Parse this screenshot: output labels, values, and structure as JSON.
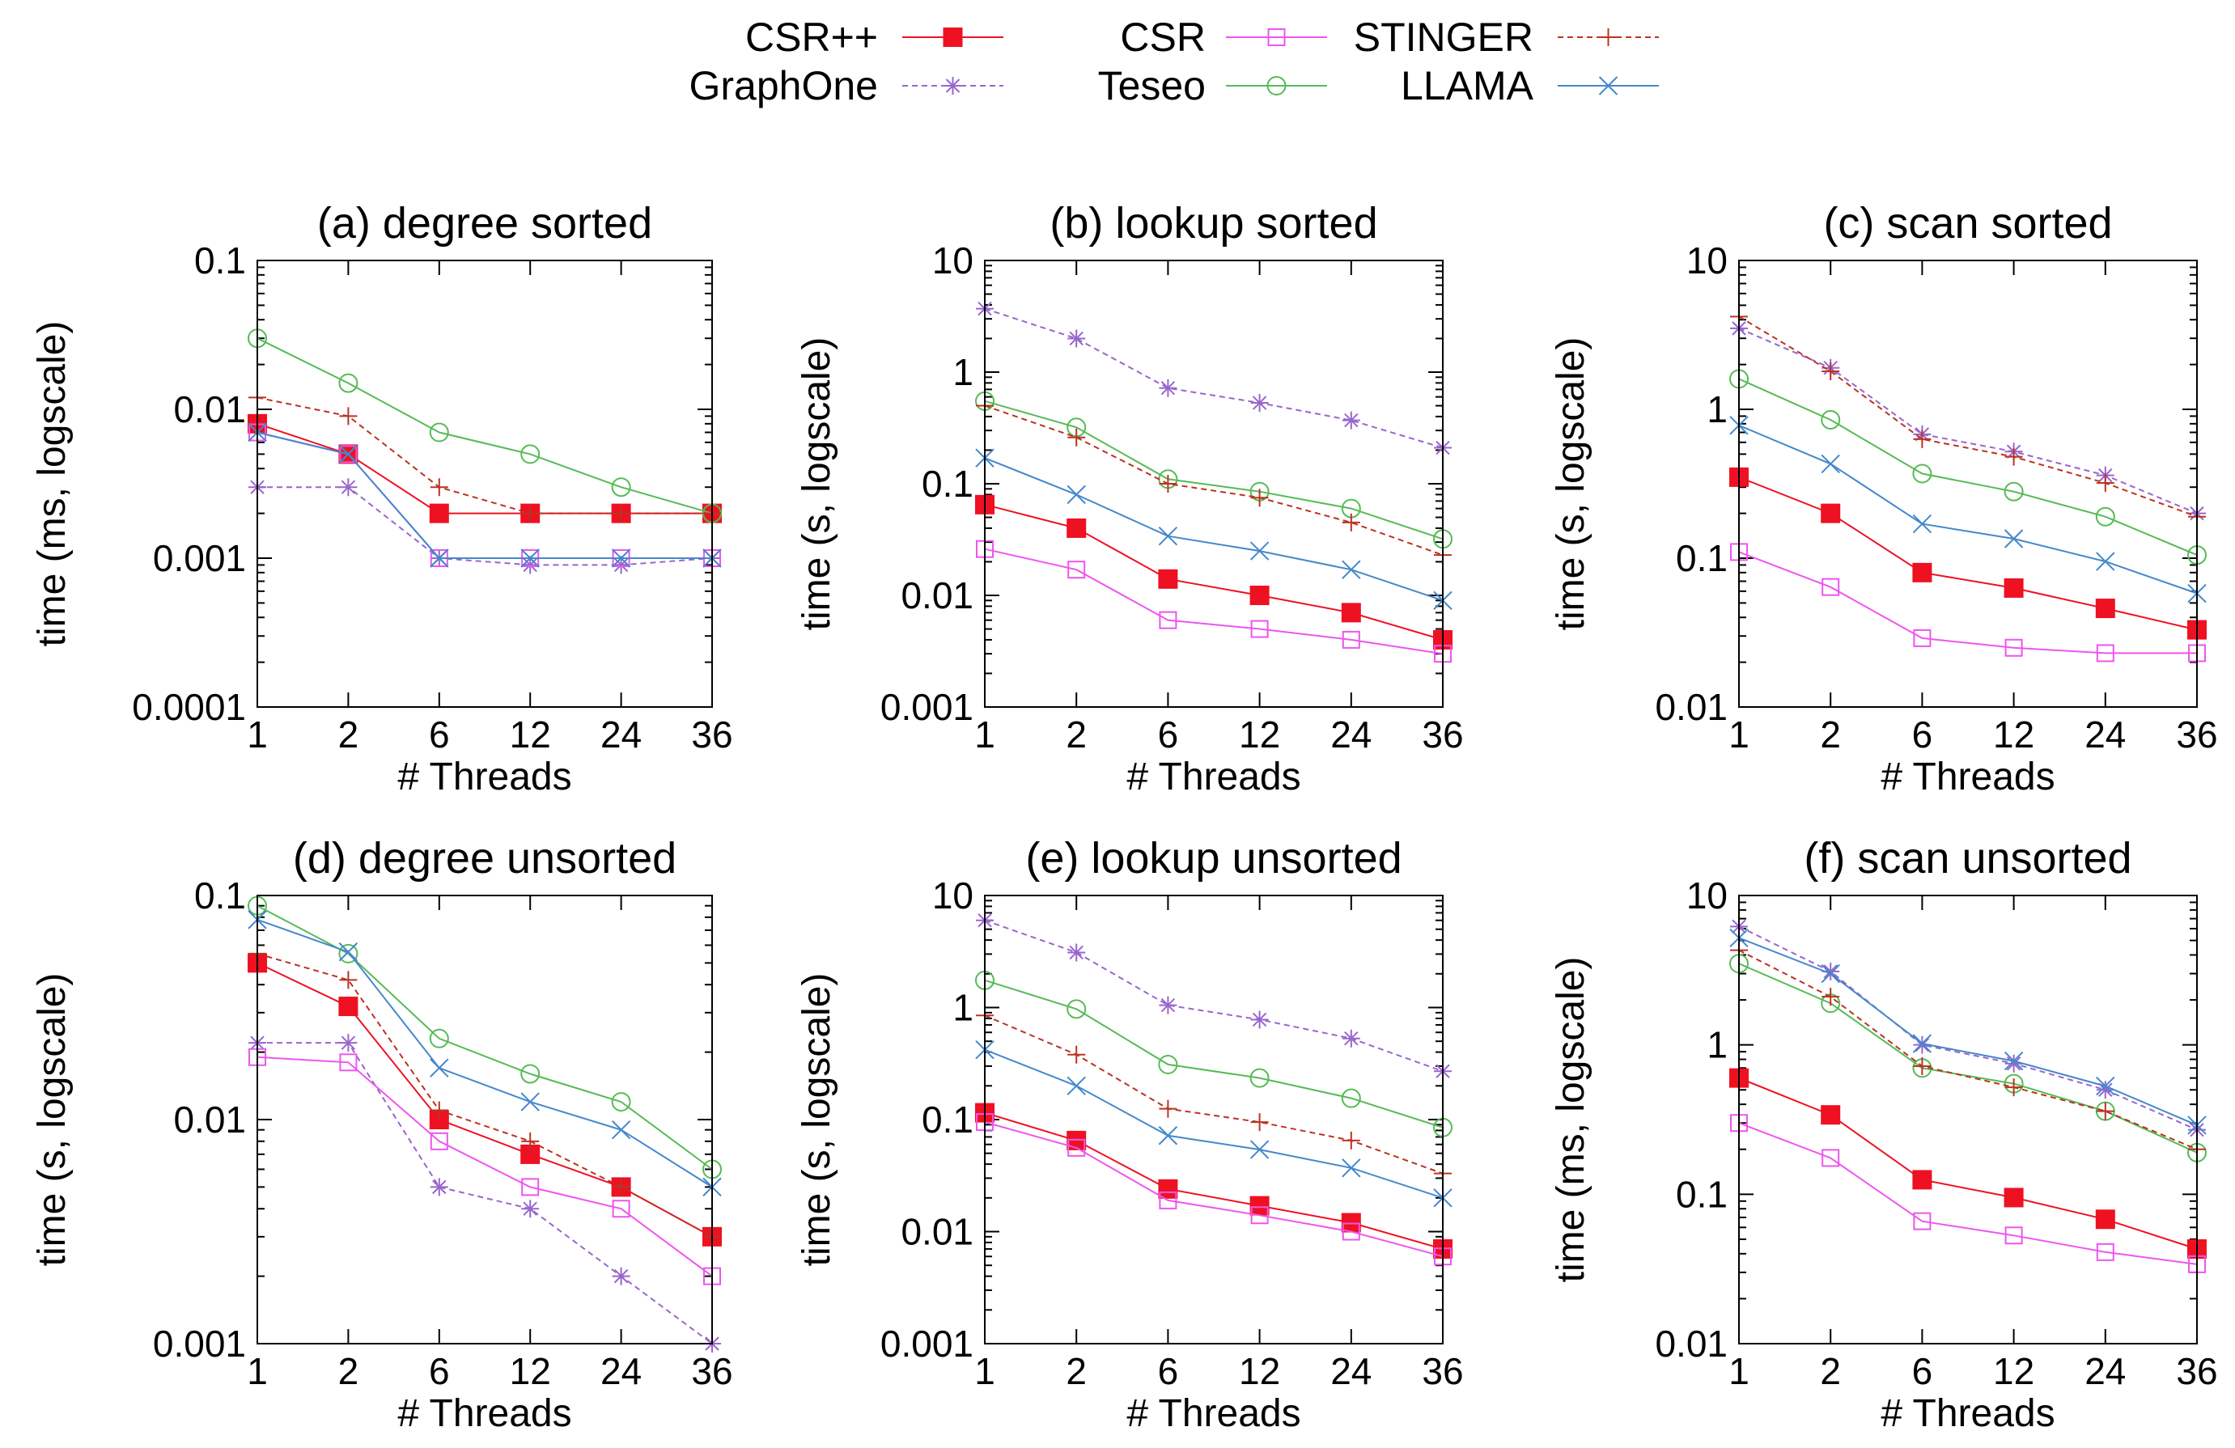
{
  "legend_entries": [
    {
      "name": "CSR++",
      "color": "#ee1122",
      "marker": "filled-square",
      "dash": false
    },
    {
      "name": "GraphOne",
      "color": "#9966cc",
      "marker": "star",
      "dash": true
    },
    {
      "name": "CSR",
      "color": "#ee55ee",
      "marker": "open-square",
      "dash": false
    },
    {
      "name": "Teseo",
      "color": "#55bb55",
      "marker": "circle",
      "dash": false
    },
    {
      "name": "STINGER",
      "color": "#bb3322",
      "marker": "plus",
      "dash": true
    },
    {
      "name": "LLAMA",
      "color": "#4488cc",
      "marker": "x",
      "dash": false
    }
  ],
  "chart_data": [
    {
      "type": "line",
      "title": "(a) degree sorted",
      "xlabel": "# Threads",
      "ylabel": "time (ms, logscale)",
      "x": [
        "1",
        "2",
        "6",
        "12",
        "24",
        "36"
      ],
      "yscale": "log",
      "ylim": [
        0.0001,
        0.1
      ],
      "yticks": [
        "0.0001",
        "0.001",
        "0.01",
        "0.1"
      ],
      "series": [
        {
          "name": "CSR++",
          "values": [
            0.008,
            0.005,
            0.002,
            0.002,
            0.002,
            0.002
          ]
        },
        {
          "name": "GraphOne",
          "values": [
            0.003,
            0.003,
            0.001,
            0.0009,
            0.0009,
            0.001
          ]
        },
        {
          "name": "CSR",
          "values": [
            0.007,
            0.005,
            0.001,
            0.001,
            0.001,
            0.001
          ]
        },
        {
          "name": "Teseo",
          "values": [
            0.03,
            0.015,
            0.007,
            0.005,
            0.003,
            0.002
          ]
        },
        {
          "name": "STINGER",
          "values": [
            0.012,
            0.009,
            0.003,
            0.002,
            0.002,
            0.002
          ]
        },
        {
          "name": "LLAMA",
          "values": [
            0.007,
            0.005,
            0.001,
            0.001,
            0.001,
            0.001
          ]
        }
      ]
    },
    {
      "type": "line",
      "title": "(b) lookup sorted",
      "xlabel": "# Threads",
      "ylabel": "time (s, logscale)",
      "x": [
        "1",
        "2",
        "6",
        "12",
        "24",
        "36"
      ],
      "yscale": "log",
      "ylim": [
        0.001,
        10
      ],
      "yticks": [
        "0.001",
        "0.01",
        "0.1",
        "1",
        "10"
      ],
      "series": [
        {
          "name": "CSR++",
          "values": [
            0.065,
            0.04,
            0.014,
            0.01,
            0.007,
            0.004
          ]
        },
        {
          "name": "GraphOne",
          "values": [
            3.7,
            2.0,
            0.72,
            0.53,
            0.37,
            0.21
          ]
        },
        {
          "name": "CSR",
          "values": [
            0.026,
            0.017,
            0.006,
            0.005,
            0.004,
            0.003
          ]
        },
        {
          "name": "Teseo",
          "values": [
            0.55,
            0.32,
            0.11,
            0.085,
            0.06,
            0.032
          ]
        },
        {
          "name": "STINGER",
          "values": [
            0.5,
            0.26,
            0.1,
            0.075,
            0.045,
            0.023
          ]
        },
        {
          "name": "LLAMA",
          "values": [
            0.17,
            0.08,
            0.034,
            0.025,
            0.017,
            0.009
          ]
        }
      ]
    },
    {
      "type": "line",
      "title": "(c) scan sorted",
      "xlabel": "# Threads",
      "ylabel": "time (s, logscale)",
      "x": [
        "1",
        "2",
        "6",
        "12",
        "24",
        "36"
      ],
      "yscale": "log",
      "ylim": [
        0.01,
        10
      ],
      "yticks": [
        "0.01",
        "0.1",
        "1",
        "10"
      ],
      "series": [
        {
          "name": "CSR++",
          "values": [
            0.35,
            0.2,
            0.08,
            0.063,
            0.046,
            0.033
          ]
        },
        {
          "name": "GraphOne",
          "values": [
            3.5,
            1.9,
            0.68,
            0.52,
            0.36,
            0.2
          ]
        },
        {
          "name": "CSR",
          "values": [
            0.11,
            0.064,
            0.029,
            0.025,
            0.023,
            0.023
          ]
        },
        {
          "name": "Teseo",
          "values": [
            1.6,
            0.85,
            0.37,
            0.28,
            0.19,
            0.105
          ]
        },
        {
          "name": "STINGER",
          "values": [
            4.2,
            1.8,
            0.63,
            0.48,
            0.32,
            0.19
          ]
        },
        {
          "name": "LLAMA",
          "values": [
            0.78,
            0.43,
            0.17,
            0.135,
            0.095,
            0.058
          ]
        }
      ]
    },
    {
      "type": "line",
      "title": "(d) degree unsorted",
      "xlabel": "# Threads",
      "ylabel": "time (s, logscale)",
      "x": [
        "1",
        "2",
        "6",
        "12",
        "24",
        "36"
      ],
      "yscale": "log",
      "ylim": [
        0.001,
        0.1
      ],
      "yticks": [
        "0.001",
        "0.01",
        "0.1"
      ],
      "series": [
        {
          "name": "CSR++",
          "values": [
            0.05,
            0.032,
            0.01,
            0.007,
            0.005,
            0.003
          ]
        },
        {
          "name": "GraphOne",
          "values": [
            0.022,
            0.022,
            0.005,
            0.004,
            0.002,
            0.001
          ]
        },
        {
          "name": "CSR",
          "values": [
            0.019,
            0.018,
            0.008,
            0.005,
            0.004,
            0.002
          ]
        },
        {
          "name": "Teseo",
          "values": [
            0.09,
            0.055,
            0.023,
            0.016,
            0.012,
            0.006
          ]
        },
        {
          "name": "STINGER",
          "values": [
            0.055,
            0.042,
            0.011,
            0.008,
            0.005,
            0.003
          ]
        },
        {
          "name": "LLAMA",
          "values": [
            0.078,
            0.056,
            0.017,
            0.012,
            0.009,
            0.005
          ]
        }
      ]
    },
    {
      "type": "line",
      "title": "(e) lookup unsorted",
      "xlabel": "# Threads",
      "ylabel": "time (s, logscale)",
      "x": [
        "1",
        "2",
        "6",
        "12",
        "24",
        "36"
      ],
      "yscale": "log",
      "ylim": [
        0.001,
        10
      ],
      "yticks": [
        "0.001",
        "0.01",
        "0.1",
        "1",
        "10"
      ],
      "series": [
        {
          "name": "CSR++",
          "values": [
            0.115,
            0.065,
            0.024,
            0.017,
            0.012,
            0.007
          ]
        },
        {
          "name": "GraphOne",
          "values": [
            6.0,
            3.1,
            1.05,
            0.78,
            0.53,
            0.27
          ]
        },
        {
          "name": "CSR",
          "values": [
            0.095,
            0.056,
            0.019,
            0.014,
            0.01,
            0.006
          ]
        },
        {
          "name": "Teseo",
          "values": [
            1.75,
            0.97,
            0.31,
            0.235,
            0.155,
            0.085
          ]
        },
        {
          "name": "STINGER",
          "values": [
            0.85,
            0.38,
            0.125,
            0.095,
            0.065,
            0.033
          ]
        },
        {
          "name": "LLAMA",
          "values": [
            0.42,
            0.2,
            0.072,
            0.054,
            0.037,
            0.02
          ]
        }
      ]
    },
    {
      "type": "line",
      "title": "(f) scan unsorted",
      "xlabel": "# Threads",
      "ylabel": "time (ms, logscale)",
      "x": [
        "1",
        "2",
        "6",
        "12",
        "24",
        "36"
      ],
      "yscale": "log",
      "ylim": [
        0.01,
        10
      ],
      "yticks": [
        "0.01",
        "0.1",
        "1",
        "10"
      ],
      "series": [
        {
          "name": "CSR++",
          "values": [
            0.6,
            0.34,
            0.125,
            0.095,
            0.068,
            0.043
          ]
        },
        {
          "name": "GraphOne",
          "values": [
            6.2,
            3.1,
            1.0,
            0.75,
            0.5,
            0.27
          ]
        },
        {
          "name": "CSR",
          "values": [
            0.3,
            0.175,
            0.066,
            0.053,
            0.041,
            0.034
          ]
        },
        {
          "name": "Teseo",
          "values": [
            3.5,
            1.9,
            0.7,
            0.55,
            0.36,
            0.19
          ]
        },
        {
          "name": "STINGER",
          "values": [
            4.3,
            2.1,
            0.72,
            0.52,
            0.36,
            0.2
          ]
        },
        {
          "name": "LLAMA",
          "values": [
            5.2,
            3.0,
            1.02,
            0.78,
            0.53,
            0.29
          ]
        }
      ]
    }
  ]
}
